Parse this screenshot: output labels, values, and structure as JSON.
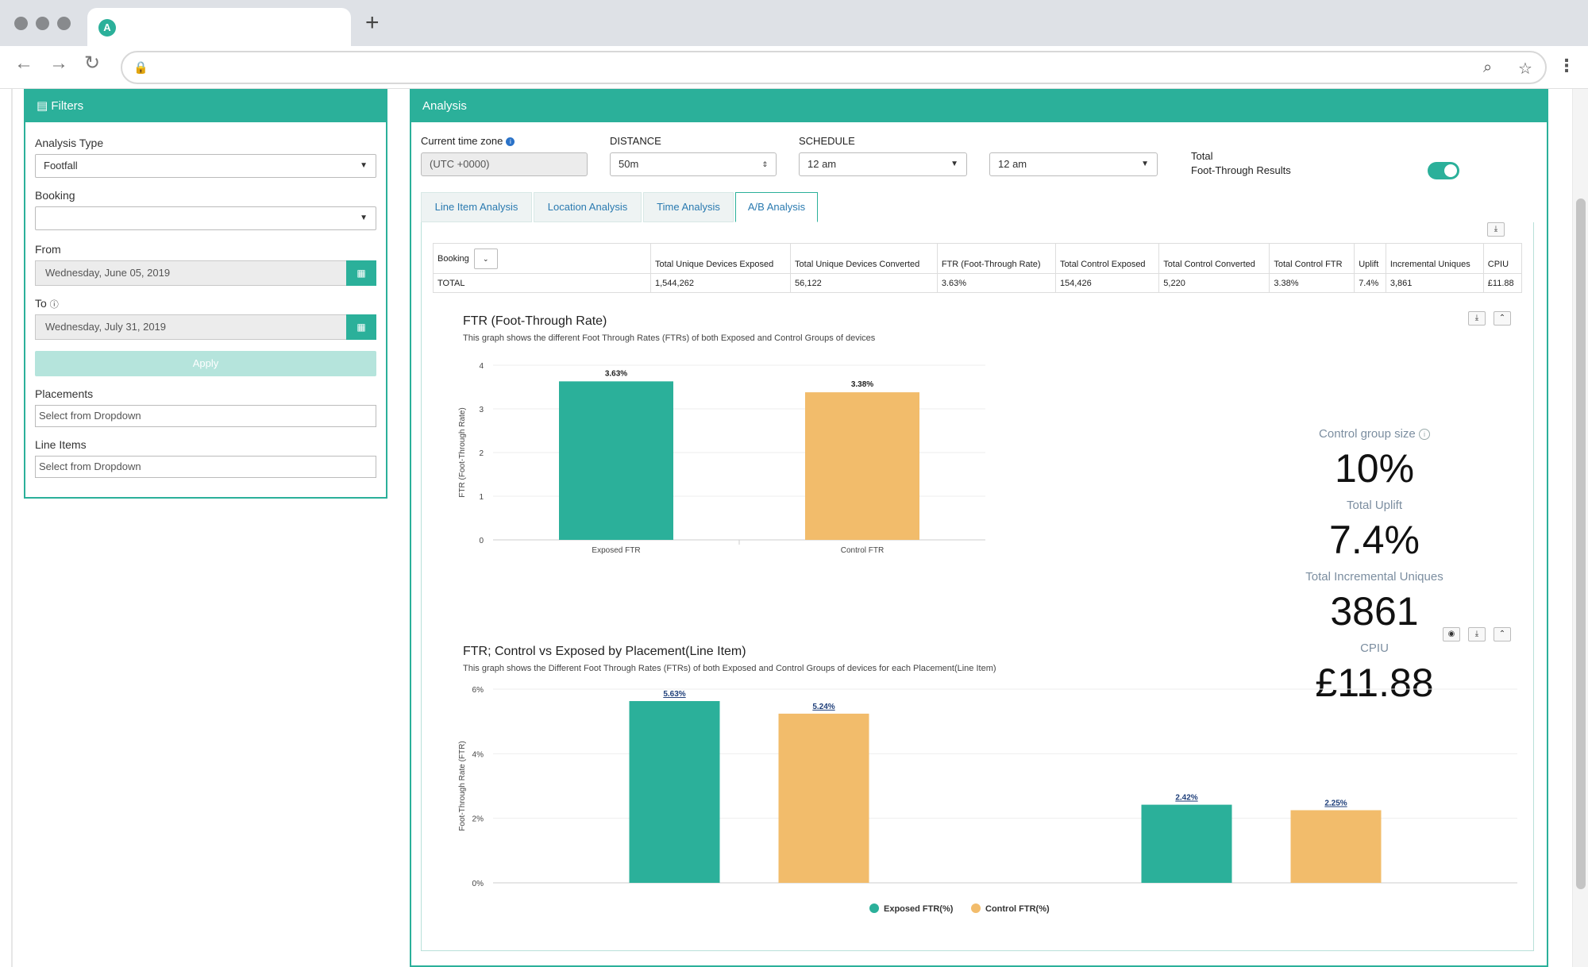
{
  "filters": {
    "title": "Filters",
    "analysis_type_label": "Analysis Type",
    "analysis_type_value": "Footfall",
    "booking_label": "Booking",
    "booking_value": "",
    "from_label": "From",
    "from_value": "Wednesday, June 05, 2019",
    "to_label": "To",
    "to_value": "Wednesday, July 31, 2019",
    "apply_label": "Apply",
    "placements_label": "Placements",
    "placements_placeholder": "Select from Dropdown",
    "line_items_label": "Line Items",
    "line_items_placeholder": "Select from Dropdown"
  },
  "analysis": {
    "title": "Analysis",
    "timezone_label": "Current time zone",
    "timezone_value": "(UTC +0000)",
    "distance_label": "DISTANCE",
    "distance_value": "50m",
    "schedule_label": "SCHEDULE",
    "schedule_from": "12 am",
    "schedule_to": "12 am",
    "toggle_label_1": "Total",
    "toggle_label_2": "Foot-Through Results",
    "tabs": [
      {
        "label": "Line Item Analysis"
      },
      {
        "label": "Location Analysis"
      },
      {
        "label": "Time Analysis"
      },
      {
        "label": "A/B Analysis"
      }
    ]
  },
  "summary_table": {
    "headers": [
      "Booking",
      "Total Unique Devices Exposed",
      "Total Unique Devices Converted",
      "FTR (Foot-Through Rate)",
      "Total Control Exposed",
      "Total Control Converted",
      "Total Control FTR",
      "Uplift",
      "Incremental Uniques",
      "CPIU"
    ],
    "row": [
      "TOTAL",
      "1,544,262",
      "56,122",
      "3.63%",
      "154,426",
      "5,220",
      "3.38%",
      "7.4%",
      "3,861",
      "£11.88"
    ]
  },
  "stats": {
    "control_group_label": "Control group size",
    "control_group_value": "10%",
    "uplift_label": "Total Uplift",
    "uplift_value": "7.4%",
    "incremental_label": "Total Incremental Uniques",
    "incremental_value": "3861",
    "cpiu_label": "CPIU",
    "cpiu_value": "£11.88"
  },
  "colors": {
    "exposed": "#2bb09a",
    "control": "#f2bc6b"
  },
  "chart_data": [
    {
      "type": "bar",
      "title": "FTR (Foot-Through Rate)",
      "subtitle": "This graph shows the different Foot Through Rates (FTRs) of both Exposed and Control Groups of devices",
      "ylabel": "FTR (Foot-Through Rate)",
      "categories": [
        "Exposed FTR",
        "Control FTR"
      ],
      "values": [
        3.63,
        3.38
      ],
      "labels": [
        "3.63%",
        "3.38%"
      ],
      "ylim": [
        0,
        4
      ],
      "yticks": [
        "0",
        "1",
        "2",
        "3",
        "4"
      ],
      "grid": true
    },
    {
      "type": "bar",
      "title": "FTR; Control vs Exposed by Placement(Line Item)",
      "subtitle": "This graph shows the Different Foot Through Rates (FTRs) of both Exposed and Control Groups of devices for each Placement(Line Item)",
      "ylabel": "Foot-Through Rate (FTR)",
      "ylim": [
        0,
        6
      ],
      "yticks": [
        "0%",
        "2%",
        "4%",
        "6%"
      ],
      "groups": 2,
      "series": [
        {
          "name": "Exposed FTR(%)",
          "values": [
            5.63,
            2.42
          ],
          "labels": [
            "5.63%",
            "2.42%"
          ]
        },
        {
          "name": "Control FTR(%)",
          "values": [
            5.24,
            2.25
          ],
          "labels": [
            "5.24%",
            "2.25%"
          ]
        }
      ],
      "legend": "bottom",
      "grid": true
    }
  ]
}
